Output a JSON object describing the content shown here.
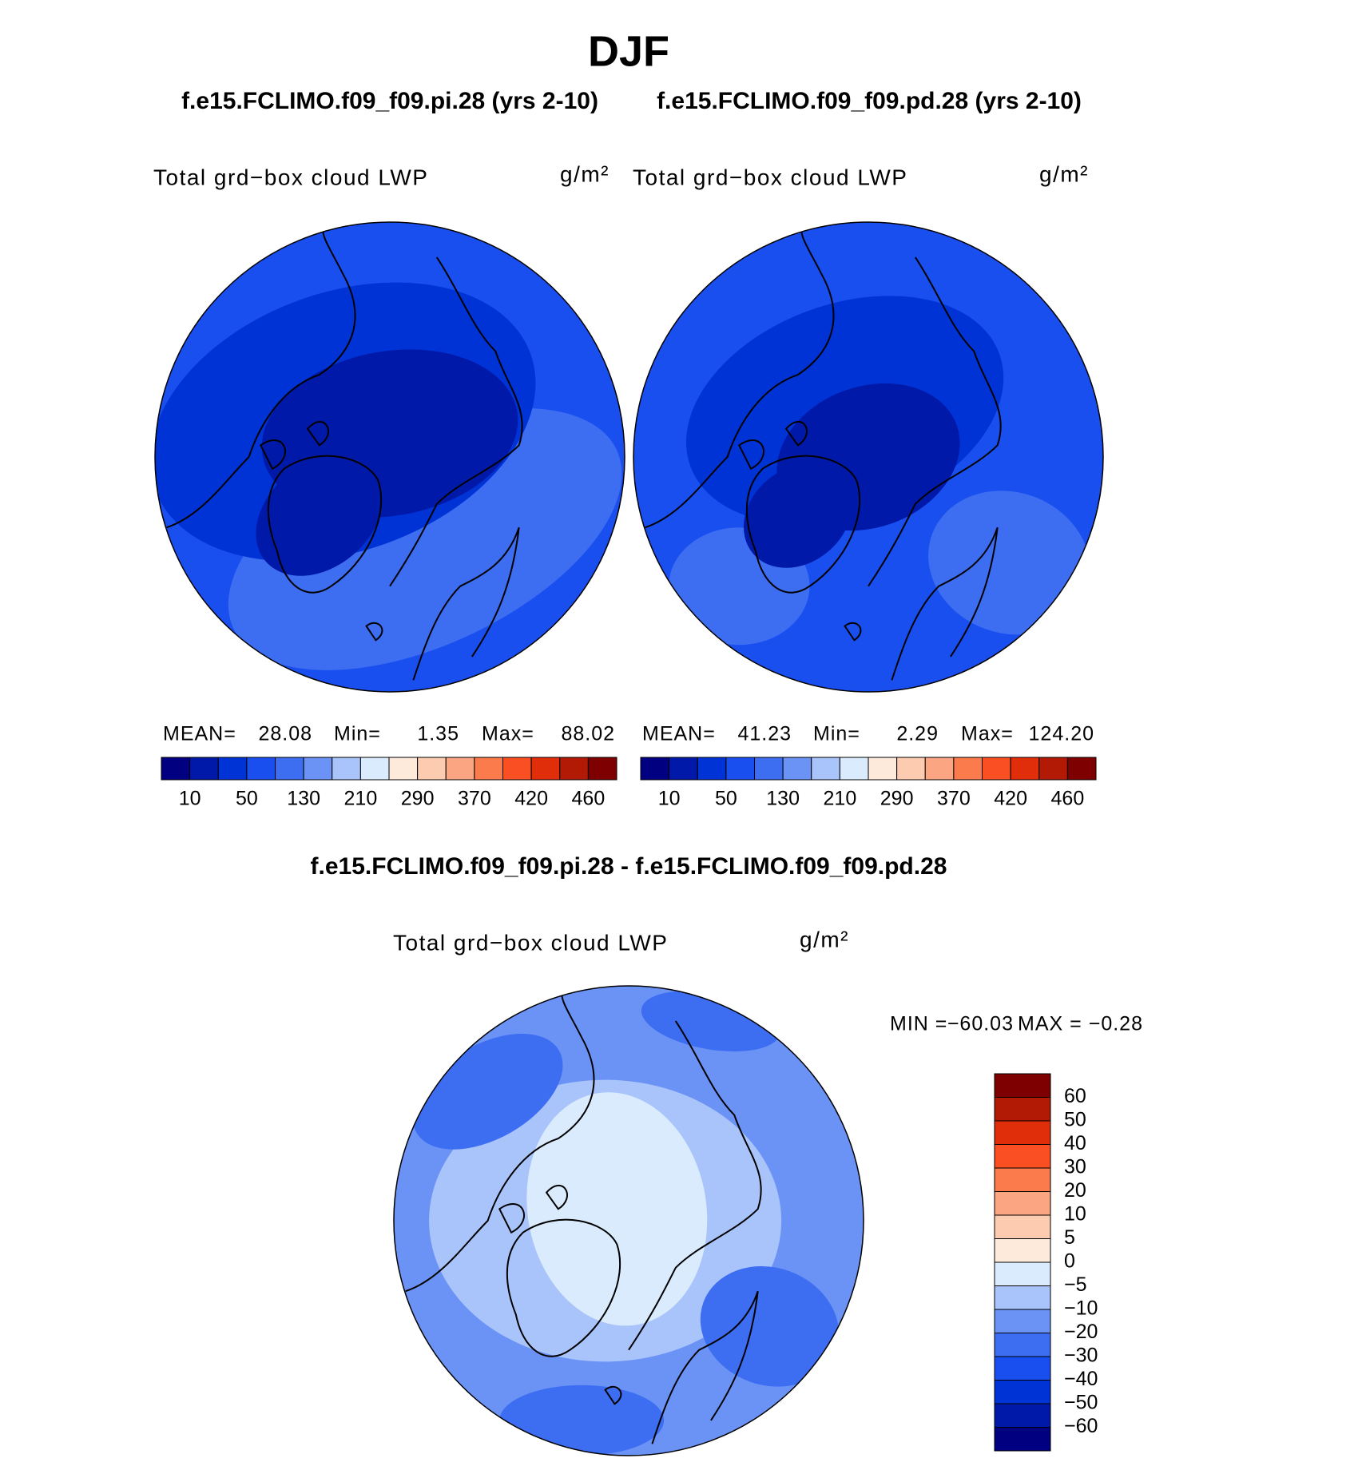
{
  "title": "DJF",
  "subtitles": [
    "f.e15.FCLIMO.f09_f09.pi.28 (yrs 2-10)",
    "f.e15.FCLIMO.f09_f09.pd.28 (yrs 2-10)"
  ],
  "panels": [
    {
      "title": "Total grd−box cloud LWP",
      "units": "g/m²",
      "stats": [
        {
          "label": "MEAN=",
          "value": "28.08"
        },
        {
          "label": "Min=",
          "value": "1.35"
        },
        {
          "label": "Max=",
          "value": "88.02"
        }
      ]
    },
    {
      "title": "Total grd−box cloud LWP",
      "units": "g/m²",
      "stats": [
        {
          "label": "MEAN=",
          "value": "41.23"
        },
        {
          "label": "Min=",
          "value": "2.29"
        },
        {
          "label": "Max=",
          "value": "124.20"
        }
      ]
    }
  ],
  "colorbar": {
    "labels": [
      "10",
      "50",
      "130",
      "210",
      "290",
      "370",
      "420",
      "460"
    ],
    "colors": [
      "#000080",
      "#0019a8",
      "#0033d6",
      "#1a4fef",
      "#3d6ef2",
      "#6b93f5",
      "#a9c4fa",
      "#d9ebfd",
      "#feeadb",
      "#fdcbb0",
      "#fca582",
      "#fb7b4c",
      "#f94f22",
      "#e02e0a",
      "#b21a05",
      "#7f0000"
    ]
  },
  "difference": {
    "title": "f.e15.FCLIMO.f09_f09.pi.28 - f.e15.FCLIMO.f09_f09.pd.28",
    "panel_title": "Total grd−box cloud LWP",
    "units": "g/m²",
    "stats": [
      {
        "label": "MIN =",
        "value": "−60.03"
      },
      {
        "label": "MAX =",
        "value": "−0.28"
      }
    ],
    "colorbar": {
      "labels": [
        "60",
        "50",
        "40",
        "30",
        "20",
        "10",
        "5",
        "0",
        "−5",
        "−10",
        "−20",
        "−30",
        "−40",
        "−50",
        "−60"
      ],
      "colors": [
        "#7f0000",
        "#b21a05",
        "#e02e0a",
        "#f94f22",
        "#fb7b4c",
        "#fca582",
        "#fdcbb0",
        "#feeadb",
        "#d9ebfd",
        "#a9c4fa",
        "#6b93f5",
        "#3d6ef2",
        "#1a4fef",
        "#0033d6",
        "#0019a8",
        "#000080"
      ]
    }
  }
}
